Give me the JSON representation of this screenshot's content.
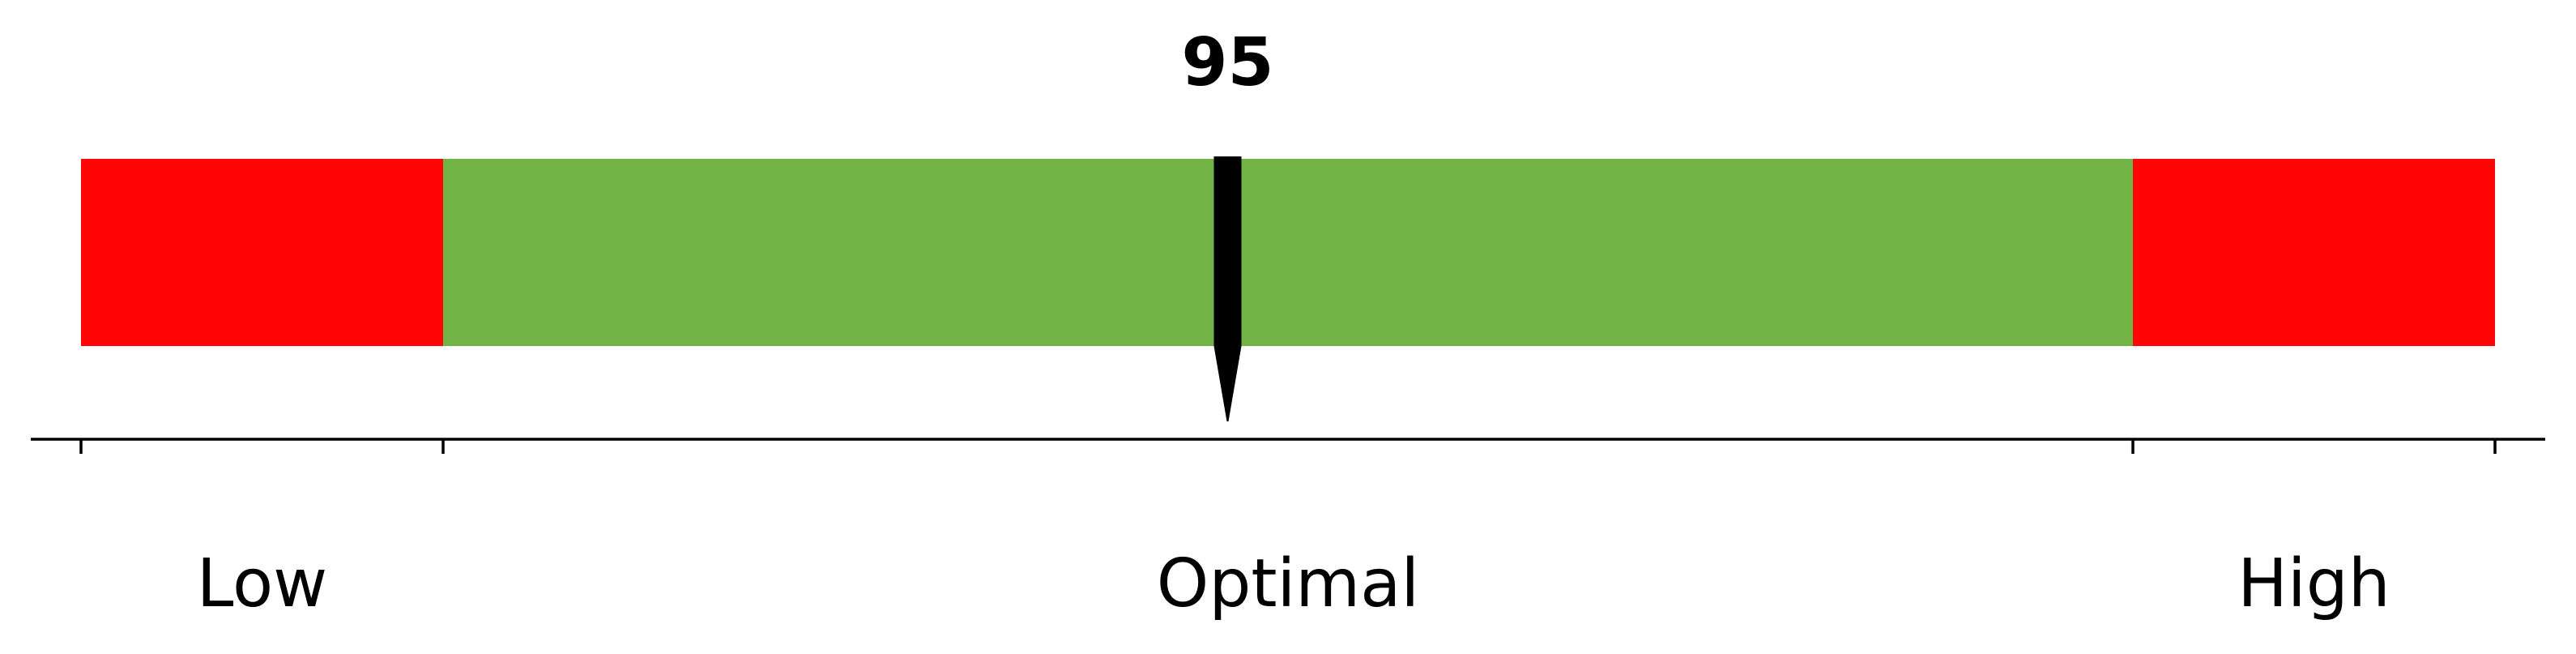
{
  "chart_data": {
    "type": "bullet-gauge",
    "value": 95,
    "value_label": "95",
    "range": [
      0,
      200
    ],
    "segments": [
      {
        "label": "Low",
        "from": 0,
        "to": 30,
        "color": "#ff0505"
      },
      {
        "label": "Optimal",
        "from": 30,
        "to": 170,
        "color": "#72b345"
      },
      {
        "label": "High",
        "from": 170,
        "to": 200,
        "color": "#ff0505"
      }
    ],
    "ticks": [
      0,
      30,
      170,
      200
    ],
    "pointer_color": "#000000",
    "axis_color": "#000000"
  }
}
